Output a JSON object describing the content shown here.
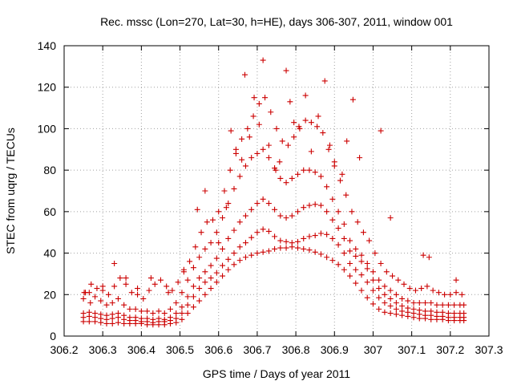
{
  "chart_data": {
    "type": "scatter",
    "title": "Rec. mssc (Lon=270, Lat=30, h=HE), days 306-307, 2011, window 001",
    "xlabel": "GPS time / Days of year 2011",
    "ylabel": "STEC from uqrg / TECUs",
    "xlim": [
      306.2,
      307.3
    ],
    "ylim": [
      0,
      140
    ],
    "x_ticks": [
      306.2,
      306.3,
      306.4,
      306.5,
      306.6,
      306.7,
      306.8,
      306.9,
      307,
      307.1,
      307.2,
      307.3
    ],
    "x_tick_labels": [
      "306.2",
      "306.3",
      "306.4",
      "306.5",
      "306.6",
      "306.7",
      "306.8",
      "306.9",
      "307",
      "307.1",
      "307.2",
      "307.3"
    ],
    "y_ticks": [
      0,
      20,
      40,
      60,
      80,
      100,
      120,
      140
    ],
    "y_tick_labels": [
      "0",
      "20",
      "40",
      "60",
      "80",
      "100",
      "120",
      "140"
    ],
    "grid": true,
    "legend": "none",
    "marker": "plus",
    "color": "#cc0000",
    "series": [
      {
        "x": [
          306.25,
          306.265,
          306.28,
          306.295,
          306.31,
          306.325,
          306.34,
          306.355,
          306.37,
          306.385,
          306.4,
          306.415,
          306.43,
          306.445,
          306.46,
          306.475,
          306.49,
          306.505,
          306.52,
          306.535,
          306.55,
          306.565,
          306.58,
          306.595,
          306.61,
          306.625,
          306.64,
          306.655,
          306.67,
          306.685,
          306.7,
          306.715,
          306.73,
          306.745,
          306.76,
          306.775,
          306.79,
          306.805,
          306.82,
          306.835,
          306.85,
          306.865,
          306.88,
          306.895,
          306.91,
          306.925,
          306.94,
          306.955,
          306.97,
          306.985,
          307.0,
          307.015,
          307.03,
          307.045,
          307.06,
          307.075,
          307.09,
          307.105,
          307.12,
          307.135,
          307.15,
          307.165,
          307.18,
          307.195,
          307.21,
          307.225,
          307.235
        ],
        "y": [
          7,
          7,
          7,
          6.5,
          6,
          6,
          6.5,
          6,
          6,
          6,
          6,
          5.5,
          5.5,
          5.5,
          5.5,
          6,
          6.5,
          8,
          11,
          14,
          17,
          20,
          23,
          26,
          29,
          32,
          34.5,
          36.5,
          38,
          39,
          40,
          40.5,
          41,
          42,
          42.5,
          42.5,
          43,
          42.5,
          42,
          41.5,
          40.5,
          39.5,
          38,
          36.5,
          34.5,
          32,
          29,
          25.5,
          22,
          18.5,
          15.5,
          13,
          11.5,
          11,
          10.5,
          10,
          9.5,
          9,
          8.5,
          8.5,
          8,
          8,
          8,
          7.5,
          7.5,
          7.5,
          7.5
        ]
      },
      {
        "x": [
          306.25,
          306.265,
          306.28,
          306.295,
          306.31,
          306.325,
          306.34,
          306.355,
          306.37,
          306.385,
          306.4,
          306.415,
          306.43,
          306.445,
          306.46,
          306.475,
          306.49,
          306.505,
          306.52,
          306.535,
          306.55,
          306.565,
          306.58,
          306.595,
          306.61,
          306.625,
          306.64,
          306.655,
          306.67,
          306.685,
          306.7,
          306.715,
          306.73,
          306.745,
          306.76,
          306.775,
          306.79,
          306.805,
          306.82,
          306.835,
          306.85,
          306.865,
          306.88,
          306.895,
          306.91,
          306.925,
          306.94,
          306.955,
          306.97,
          306.985,
          307.0,
          307.015,
          307.03,
          307.045,
          307.06,
          307.075,
          307.09,
          307.105,
          307.12,
          307.135,
          307.15,
          307.165,
          307.18,
          307.195,
          307.21,
          307.225,
          307.235
        ],
        "y": [
          9,
          9.5,
          9,
          8.5,
          8,
          8.5,
          9,
          8,
          7.5,
          7.5,
          7,
          7,
          6.5,
          7,
          7,
          7.5,
          8.5,
          11,
          15,
          19,
          23,
          26,
          28,
          30.5,
          34,
          37,
          40,
          43,
          45,
          47.5,
          50,
          51.5,
          50.5,
          48,
          46,
          45.5,
          45,
          45.5,
          47,
          48,
          48.5,
          49.5,
          49,
          47,
          44,
          40,
          35,
          32,
          29.5,
          26,
          22,
          18.5,
          16,
          14.5,
          13,
          12,
          11.5,
          11,
          10.5,
          10,
          10,
          9.5,
          9.5,
          9,
          9,
          9,
          9
        ]
      },
      {
        "x": [
          306.25,
          306.265,
          306.28,
          306.295,
          306.31,
          306.325,
          306.34,
          306.355,
          306.37,
          306.385,
          306.4,
          306.415,
          306.43,
          306.445,
          306.46,
          306.475,
          306.49,
          306.505,
          306.52,
          306.535,
          306.55,
          306.565,
          306.58,
          306.595,
          306.61,
          306.625,
          306.64,
          306.655,
          306.67,
          306.685,
          306.7,
          306.715,
          306.73,
          306.745,
          306.76,
          306.775,
          306.79,
          306.805,
          306.82,
          306.835,
          306.85,
          306.865,
          306.88,
          306.895,
          306.91,
          306.925,
          306.94,
          306.955,
          306.97,
          306.985,
          307.0,
          307.015,
          307.03,
          307.045,
          307.06,
          307.075,
          307.09,
          307.105,
          307.12,
          307.135,
          307.15,
          307.165,
          307.18,
          307.195,
          307.21,
          307.225,
          307.235
        ],
        "y": [
          11,
          11.5,
          11,
          10.5,
          10,
          10.5,
          11,
          10,
          9,
          9,
          8.5,
          8.5,
          8,
          8.5,
          8,
          9,
          11,
          14,
          19,
          24,
          28,
          31,
          34,
          37.5,
          42,
          47,
          51,
          55,
          58,
          61,
          64,
          66,
          64,
          61,
          58,
          57,
          58,
          60,
          62,
          63,
          63.5,
          63,
          60,
          56,
          52,
          47,
          41,
          38.5,
          36,
          32.5,
          27,
          23,
          20,
          18,
          16,
          14.5,
          13.5,
          13,
          12.5,
          12,
          12,
          11.5,
          11.5,
          11,
          11,
          11,
          11
        ]
      },
      {
        "x": [
          306.25,
          306.265,
          306.28,
          306.295,
          306.31,
          306.325,
          306.34,
          306.355,
          306.37,
          306.385,
          306.4,
          306.415,
          306.43,
          306.445,
          306.46,
          306.475,
          306.49,
          306.505,
          306.52,
          306.535,
          306.55,
          306.565,
          306.58,
          306.595,
          306.61,
          306.625,
          306.64,
          306.655,
          306.67,
          306.685,
          306.7,
          306.715,
          306.73,
          306.745,
          306.76,
          306.775,
          306.79,
          306.805,
          306.82,
          306.835,
          306.85,
          306.865,
          306.88,
          306.895,
          306.91,
          306.925,
          306.94,
          306.955,
          306.97,
          306.985,
          307.0,
          307.015,
          307.03,
          307.045,
          307.06,
          307.075,
          307.09,
          307.105,
          307.12,
          307.135,
          307.15,
          307.165,
          307.18,
          307.195,
          307.21,
          307.225,
          307.235
        ],
        "y": [
          18,
          21,
          19,
          17,
          15,
          16,
          18,
          15,
          13,
          13,
          12,
          12,
          11,
          12,
          11,
          13,
          16,
          21,
          27,
          33,
          38,
          42,
          45,
          50,
          57,
          64,
          71,
          77,
          82,
          86,
          88,
          90,
          86,
          81,
          76,
          74,
          76,
          78,
          80,
          80,
          79,
          77,
          72,
          66,
          60,
          54,
          46,
          42,
          39,
          35,
          31,
          27,
          24,
          22,
          20,
          18,
          17,
          16,
          16,
          16,
          16,
          15,
          15,
          15,
          15,
          15,
          15
        ]
      },
      {
        "x": [
          306.255,
          306.27,
          306.285,
          306.3,
          306.315,
          306.33,
          306.345,
          306.36,
          306.375,
          306.39,
          306.405,
          306.42,
          306.435,
          306.45,
          306.465,
          306.48,
          306.495,
          306.51,
          306.525,
          306.54,
          306.555,
          306.57,
          306.585,
          306.6,
          306.615,
          306.63,
          306.645,
          306.66,
          306.675,
          306.69,
          306.705,
          306.72,
          306.735,
          306.75,
          306.765,
          306.78,
          306.795,
          306.81,
          306.825,
          306.84,
          306.855,
          306.87,
          306.885,
          306.9,
          306.915,
          306.93,
          306.945,
          306.96,
          306.975,
          306.99,
          307.005,
          307.02,
          307.035,
          307.05,
          307.065,
          307.08,
          307.095,
          307.11,
          307.125,
          307.14,
          307.155,
          307.17,
          307.185,
          307.2,
          307.215,
          307.23
        ],
        "y": [
          21,
          25,
          23,
          22,
          20,
          24,
          28,
          25,
          21,
          20,
          18,
          22,
          25,
          27,
          24,
          22,
          26,
          31,
          36,
          43,
          50,
          55,
          56,
          60,
          70,
          80,
          88,
          95,
          100,
          106,
          112,
          115,
          108,
          100,
          94,
          92,
          96,
          100,
          104,
          103,
          101,
          98,
          90,
          82,
          75,
          68,
          60,
          55,
          50,
          46,
          40,
          35,
          31,
          29,
          27,
          25,
          23,
          22,
          23,
          24,
          22,
          21,
          20,
          20,
          21,
          20
        ]
      },
      {
        "x": [
          306.252,
          306.268,
          306.3,
          306.33,
          306.36,
          306.39,
          306.425,
          306.47,
          306.51,
          306.545,
          306.565,
          306.6,
          306.62,
          306.632,
          306.645,
          306.66,
          306.668,
          306.68,
          306.692,
          306.705,
          306.715,
          306.73,
          306.748,
          306.758,
          306.775,
          306.785,
          306.795,
          306.808,
          306.825,
          306.84,
          306.858,
          306.875,
          306.888,
          306.9,
          306.92,
          306.932,
          306.948,
          306.965,
          307.02,
          307.045,
          307.13,
          307.145,
          307.215
        ],
        "y": [
          21,
          16,
          24,
          35,
          28,
          23,
          28,
          21,
          32,
          61,
          70,
          45,
          62,
          99,
          90,
          85,
          126,
          96,
          115,
          102,
          133,
          92,
          80,
          84,
          128,
          113,
          103,
          101,
          116,
          89,
          106,
          123,
          92,
          84,
          78,
          94,
          114,
          86,
          99,
          57,
          39,
          38,
          27
        ]
      }
    ]
  }
}
